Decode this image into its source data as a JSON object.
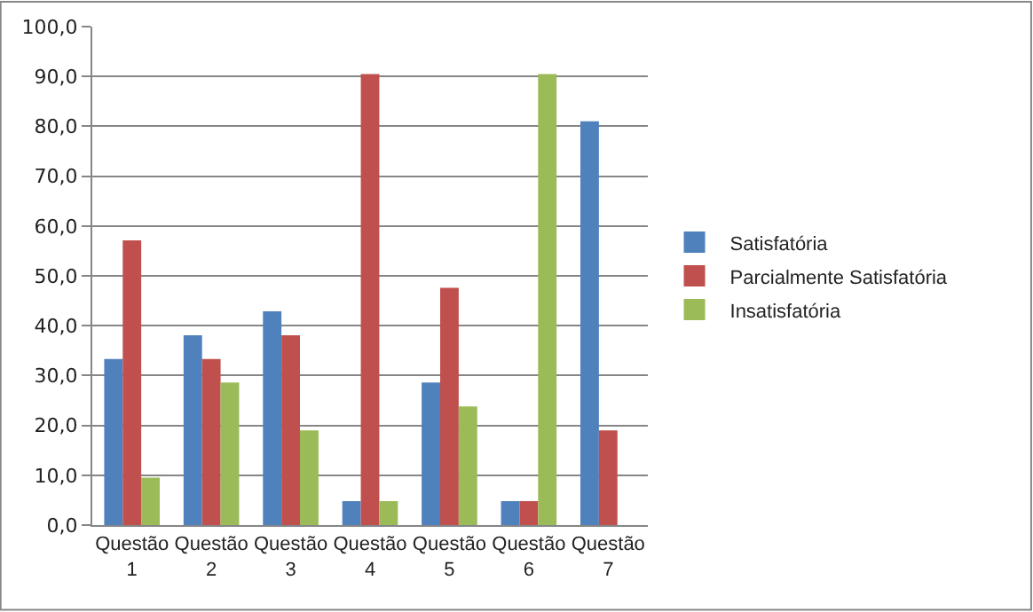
{
  "chart_data": {
    "type": "bar",
    "categories": [
      "Questão 1",
      "Questão 2",
      "Questão 3",
      "Questão 4",
      "Questão 5",
      "Questão 6",
      "Questão 7"
    ],
    "series": [
      {
        "name": "Satisfatória",
        "color": "#4f81bd",
        "values": [
          33.3,
          38.1,
          42.9,
          4.8,
          28.6,
          4.8,
          81.0
        ]
      },
      {
        "name": "Parcialmente Satisfatória",
        "color": "#c0504d",
        "values": [
          57.1,
          33.3,
          38.1,
          90.5,
          47.6,
          4.8,
          19.0
        ]
      },
      {
        "name": "Insatisfatória",
        "color": "#9bbb59",
        "values": [
          9.5,
          28.6,
          19.0,
          4.8,
          23.8,
          90.5,
          0
        ]
      }
    ],
    "ylim": [
      0,
      100
    ],
    "yticks": [
      {
        "value": 0,
        "label": "0,0"
      },
      {
        "value": 10,
        "label": "10,0"
      },
      {
        "value": 20,
        "label": "20,0"
      },
      {
        "value": 30,
        "label": "30,0"
      },
      {
        "value": 40,
        "label": "40,0"
      },
      {
        "value": 50,
        "label": "50,0"
      },
      {
        "value": 60,
        "label": "60,0"
      },
      {
        "value": 70,
        "label": "70,0"
      },
      {
        "value": 80,
        "label": "80,0"
      },
      {
        "value": 90,
        "label": "90,0"
      },
      {
        "value": 100,
        "label": "100,0"
      }
    ],
    "grid": "y",
    "legend": "right"
  }
}
